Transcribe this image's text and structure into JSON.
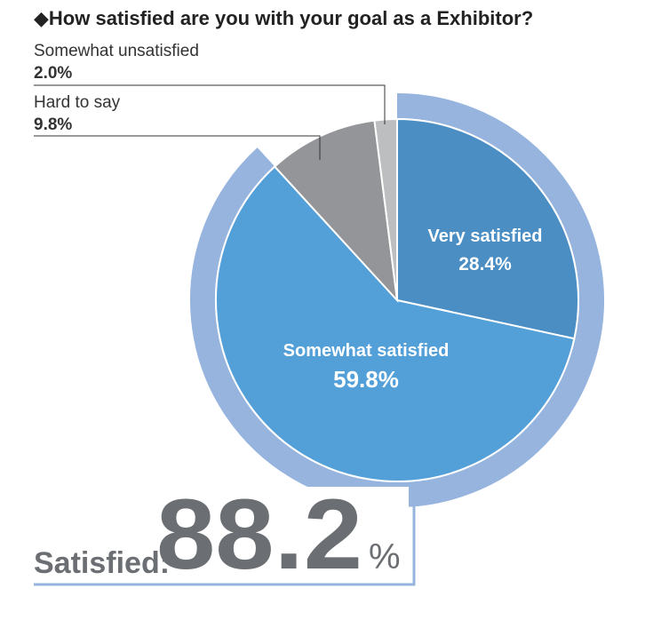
{
  "header": {
    "title": "◆How satisfied are you with your goal as a Exhibitor?"
  },
  "colors": {
    "very_satisfied": "#4a8ec4",
    "somewhat_satisfied": "#539fd8",
    "hard_to_say": "#939598",
    "somewhat_unsatisfied": "#bdbec0",
    "ring": "#96b4dd",
    "summary_text": "#6b6e72"
  },
  "chart_data": {
    "type": "pie",
    "title": "How satisfied are you with your goal as a Exhibitor?",
    "categories": [
      "Very satisfied",
      "Somewhat satisfied",
      "Hard to say",
      "Somewhat unsatisfied"
    ],
    "values": [
      28.4,
      59.8,
      9.8,
      2.0
    ],
    "unit": "%",
    "value_labels": [
      "28.4%",
      "59.8%",
      "9.8%",
      "2.0%"
    ]
  },
  "summary": {
    "label": "Satisfied:",
    "value": "88.2",
    "unit": "%"
  }
}
